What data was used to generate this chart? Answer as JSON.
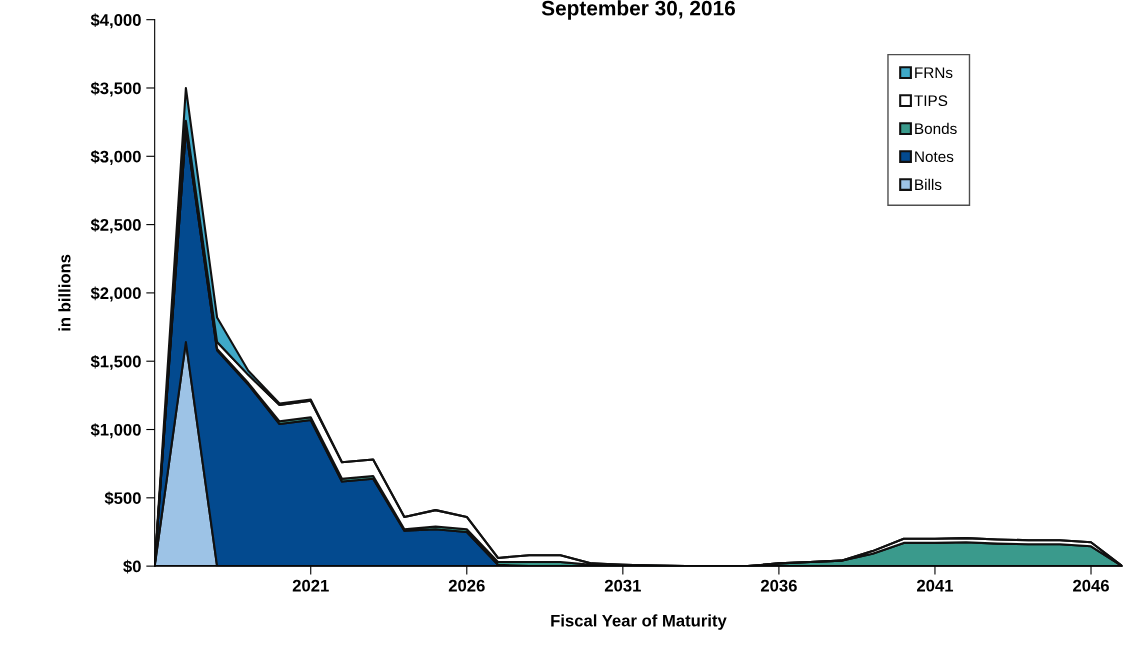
{
  "chart_data": {
    "type": "area",
    "stacked": true,
    "title": "September 30, 2016",
    "xlabel": "Fiscal Year of Maturity",
    "ylabel": "in billions",
    "x": [
      2016,
      2017,
      2018,
      2019,
      2020,
      2021,
      2022,
      2023,
      2024,
      2025,
      2026,
      2027,
      2028,
      2029,
      2030,
      2031,
      2032,
      2033,
      2034,
      2035,
      2036,
      2037,
      2038,
      2039,
      2040,
      2041,
      2042,
      2043,
      2044,
      2045,
      2046,
      2047
    ],
    "series": [
      {
        "name": "Bills",
        "color": "#9dc3e6",
        "values": [
          0,
          1640,
          0,
          0,
          0,
          0,
          0,
          0,
          0,
          0,
          0,
          0,
          0,
          0,
          0,
          0,
          0,
          0,
          0,
          0,
          0,
          0,
          0,
          0,
          0,
          0,
          0,
          0,
          0,
          0,
          0,
          0
        ]
      },
      {
        "name": "Notes",
        "color": "#034a8f",
        "values": [
          0,
          1560,
          1580,
          1330,
          1040,
          1070,
          620,
          640,
          260,
          270,
          250,
          10,
          0,
          0,
          0,
          0,
          0,
          0,
          0,
          0,
          0,
          0,
          0,
          0,
          0,
          0,
          0,
          0,
          0,
          0,
          0,
          0
        ]
      },
      {
        "name": "Bonds",
        "color": "#3a9a8c",
        "values": [
          0,
          10,
          10,
          10,
          20,
          20,
          20,
          20,
          10,
          20,
          20,
          20,
          30,
          30,
          10,
          10,
          5,
          0,
          0,
          0,
          20,
          30,
          40,
          90,
          170,
          170,
          175,
          165,
          160,
          160,
          145,
          0
        ]
      },
      {
        "name": "TIPS",
        "color": "#ffffff",
        "values": [
          0,
          50,
          50,
          60,
          120,
          120,
          120,
          120,
          90,
          120,
          90,
          30,
          50,
          50,
          10,
          0,
          0,
          0,
          0,
          0,
          0,
          0,
          0,
          20,
          30,
          30,
          30,
          30,
          30,
          30,
          30,
          0
        ]
      },
      {
        "name": "FRNs",
        "color": "#3fa9c8",
        "values": [
          0,
          240,
          180,
          30,
          10,
          10,
          0,
          0,
          0,
          0,
          0,
          0,
          0,
          0,
          0,
          0,
          0,
          0,
          0,
          0,
          0,
          0,
          0,
          0,
          0,
          0,
          0,
          0,
          0,
          0,
          0,
          0
        ]
      }
    ],
    "xlim": [
      2016,
      2047
    ],
    "xticks": [
      2021,
      2026,
      2031,
      2036,
      2041,
      2046
    ],
    "ylim": [
      0,
      4000
    ],
    "yticks": [
      {
        "value": 0,
        "label": "$0"
      },
      {
        "value": 500,
        "label": "$500"
      },
      {
        "value": 1000,
        "label": "$1,000"
      },
      {
        "value": 1500,
        "label": "$1,500"
      },
      {
        "value": 2000,
        "label": "$2,000"
      },
      {
        "value": 2500,
        "label": "$2,500"
      },
      {
        "value": 3000,
        "label": "$3,000"
      },
      {
        "value": 3500,
        "label": "$3,500"
      },
      {
        "value": 4000,
        "label": "$4,000"
      }
    ],
    "legend": "top right",
    "grid": false
  }
}
